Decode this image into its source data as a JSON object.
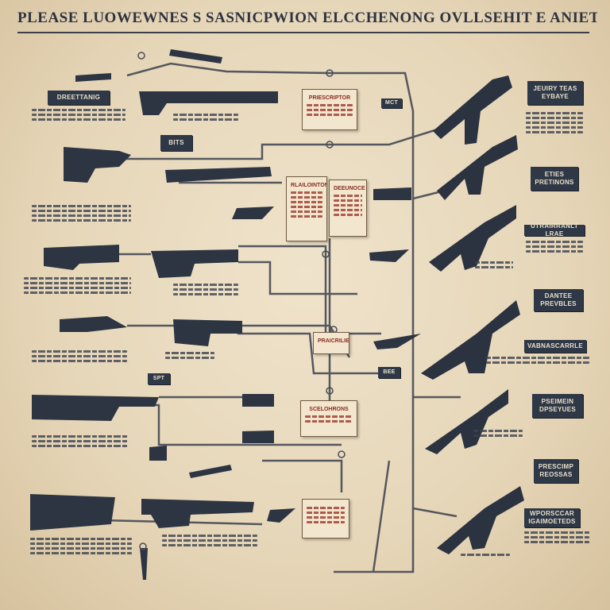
{
  "title": "PLEASE LUOWEWNES S SASNICPWION ELCCHENONG OVLLSEHIT E ANIET NE WABGHIT PRALIS TFIS",
  "colors": {
    "paper": "#e9dcc1",
    "ink": "#2f3846",
    "wire": "#5f6068",
    "accent": "#8a2e22"
  },
  "labels": {
    "tl1": "DREETTANIG",
    "mid1": "BITS",
    "r1": "JEUIRY TEAS EYBAYE",
    "r2": "ETIES PRETINONS",
    "r3": "UTRAIRRANLT LRAE",
    "r4": "DANTEE PREVBLES",
    "r5": "VABNASCARRLE",
    "r6": "PSEIMEIN DPSEYUES",
    "r7": "PRESCIMP REOSSAS",
    "r8": "WPORSCCAR IGAIMOETEDS"
  },
  "tags": {
    "t1": "MCT",
    "t2": "SPT",
    "t3": "BEE"
  },
  "notes": {
    "n1": "PRIESCRIPTOR",
    "n2": "RLAILOINTONS",
    "n3": "DEEUNOCE",
    "n4": "PRAICRILIEN",
    "n5": "SCELOHRONS"
  },
  "icons": [
    "rifle-icon",
    "scope-icon",
    "barrel-icon",
    "magazine-icon",
    "grip-icon",
    "knife-icon",
    "pendant-icon"
  ]
}
